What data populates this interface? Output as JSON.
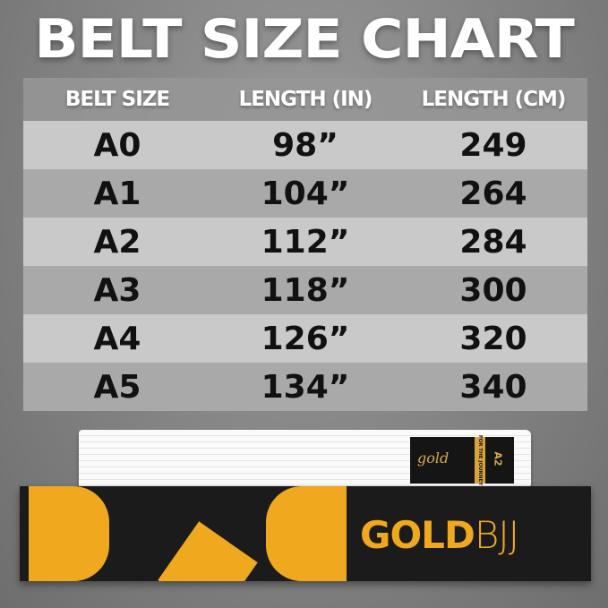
{
  "title": "BELT SIZE CHART",
  "table": {
    "headers": [
      "BELT SIZE",
      "LENGTH (IN)",
      "LENGTH (CM)"
    ],
    "rows": [
      [
        "A0",
        "98”",
        "249"
      ],
      [
        "A1",
        "104”",
        "264"
      ],
      [
        "A2",
        "112”",
        "284"
      ],
      [
        "A3",
        "118”",
        "300"
      ],
      [
        "A4",
        "126”",
        "320"
      ],
      [
        "A5",
        "134”",
        "340"
      ]
    ]
  },
  "belt": {
    "label_script": "gold",
    "label_side": "FOR THE JOURNEY",
    "size": "A2"
  },
  "box": {
    "brand_bold": "GOLD",
    "brand_light": "BJJ"
  },
  "colors": {
    "brand_gold": "#f0a91e",
    "box": "#1b1b1b"
  }
}
